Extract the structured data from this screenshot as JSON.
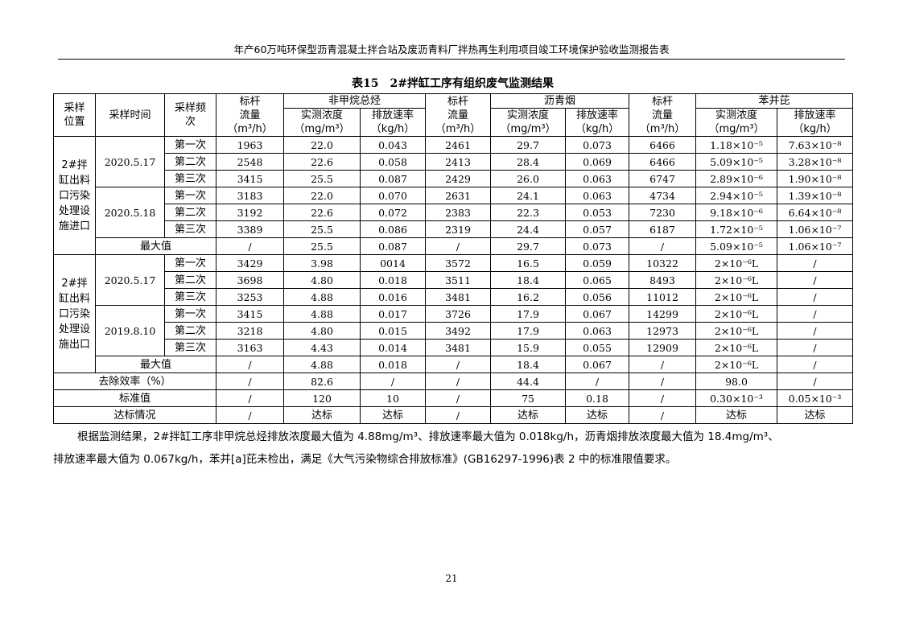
{
  "running_header": "年产60万吨环保型沥青混凝土拌合站及废沥青料厂拌热再生利用项目竣工环境保护验收监测报告表",
  "caption": "表15　2#拌缸工序有组织废气监测结果",
  "headers": {
    "location": "采样位置",
    "time": "采样时间",
    "freq": "采样频次",
    "flow": [
      "标杆",
      "流量",
      "（m³/h）"
    ],
    "groups": [
      "非甲烷总烃",
      "沥青烟",
      "苯并芘"
    ],
    "conc": [
      "实测浓度",
      "（mg/m³）"
    ],
    "rate": [
      "排放速率",
      "（kg/h）"
    ]
  },
  "sections": [
    {
      "location": "2#拌缸出料口污染处理设施进口",
      "dates": [
        {
          "date": "2020.5.17",
          "rows": [
            [
              "第一次",
              "1963",
              "22.0",
              "0.043",
              "2461",
              "29.7",
              "0.073",
              "6466",
              "1.18×10⁻⁵",
              "7.63×10⁻⁸"
            ],
            [
              "第二次",
              "2548",
              "22.6",
              "0.058",
              "2413",
              "28.4",
              "0.069",
              "6466",
              "5.09×10⁻⁵",
              "3.28×10⁻⁸"
            ],
            [
              "第三次",
              "3415",
              "25.5",
              "0.087",
              "2429",
              "26.0",
              "0.063",
              "6747",
              "2.89×10⁻⁶",
              "1.90×10⁻⁸"
            ]
          ]
        },
        {
          "date": "2020.5.18",
          "rows": [
            [
              "第一次",
              "3183",
              "22.0",
              "0.070",
              "2631",
              "24.1",
              "0.063",
              "4734",
              "2.94×10⁻⁵",
              "1.39×10⁻⁸"
            ],
            [
              "第二次",
              "3192",
              "22.6",
              "0.072",
              "2383",
              "22.3",
              "0.053",
              "7230",
              "9.18×10⁻⁶",
              "6.64×10⁻⁸"
            ],
            [
              "第三次",
              "3389",
              "25.5",
              "0.086",
              "2319",
              "24.4",
              "0.057",
              "6187",
              "1.72×10⁻⁵",
              "1.06×10⁻⁷"
            ]
          ]
        }
      ],
      "max": [
        "最大值",
        "/",
        "25.5",
        "0.087",
        "/",
        "29.7",
        "0.073",
        "/",
        "5.09×10⁻⁵",
        "1.06×10⁻⁷"
      ]
    },
    {
      "location": "2#拌缸出料口污染处理设施出口",
      "dates": [
        {
          "date": "2020.5.17",
          "rows": [
            [
              "第一次",
              "3429",
              "3.98",
              "0014",
              "3572",
              "16.5",
              "0.059",
              "10322",
              "2×10⁻⁶L",
              "/"
            ],
            [
              "第二次",
              "3698",
              "4.80",
              "0.018",
              "3511",
              "18.4",
              "0.065",
              "8493",
              "2×10⁻⁶L",
              "/"
            ],
            [
              "第三次",
              "3253",
              "4.88",
              "0.016",
              "3481",
              "16.2",
              "0.056",
              "11012",
              "2×10⁻⁶L",
              "/"
            ]
          ]
        },
        {
          "date": "2019.8.10",
          "rows": [
            [
              "第一次",
              "3415",
              "4.88",
              "0.017",
              "3726",
              "17.9",
              "0.067",
              "14299",
              "2×10⁻⁶L",
              "/"
            ],
            [
              "第二次",
              "3218",
              "4.80",
              "0.015",
              "3492",
              "17.9",
              "0.063",
              "12973",
              "2×10⁻⁶L",
              "/"
            ],
            [
              "第三次",
              "3163",
              "4.43",
              "0.014",
              "3481",
              "15.9",
              "0.055",
              "12909",
              "2×10⁻⁶L",
              "/"
            ]
          ]
        }
      ],
      "max": [
        "最大值",
        "/",
        "4.88",
        "0.018",
        "/",
        "18.4",
        "0.067",
        "/",
        "2×10⁻⁶L",
        "/"
      ]
    }
  ],
  "summary_rows": [
    [
      "去除效率（%）",
      "/",
      "82.6",
      "/",
      "/",
      "44.4",
      "/",
      "/",
      "98.0",
      "/"
    ],
    [
      "标准值",
      "/",
      "120",
      "10",
      "/",
      "75",
      "0.18",
      "/",
      "0.30×10⁻³",
      "0.05×10⁻³"
    ],
    [
      "达标情况",
      "/",
      "达标",
      "达标",
      "/",
      "达标",
      "达标",
      "/",
      "达标",
      "达标"
    ]
  ],
  "paragraph": [
    "根据监测结果，2#拌缸工序非甲烷总烃排放浓度最大值为 4.88mg/m³、排放速率最大值为 0.018kg/h，沥青烟排放浓度最大值为 18.4mg/m³、",
    "排放速率最大值为 0.067kg/h，苯并[a]芘未检出，满足《大气污染物综合排放标准》(GB16297-1996)表 2 中的标准限值要求。"
  ],
  "page_number": "21"
}
